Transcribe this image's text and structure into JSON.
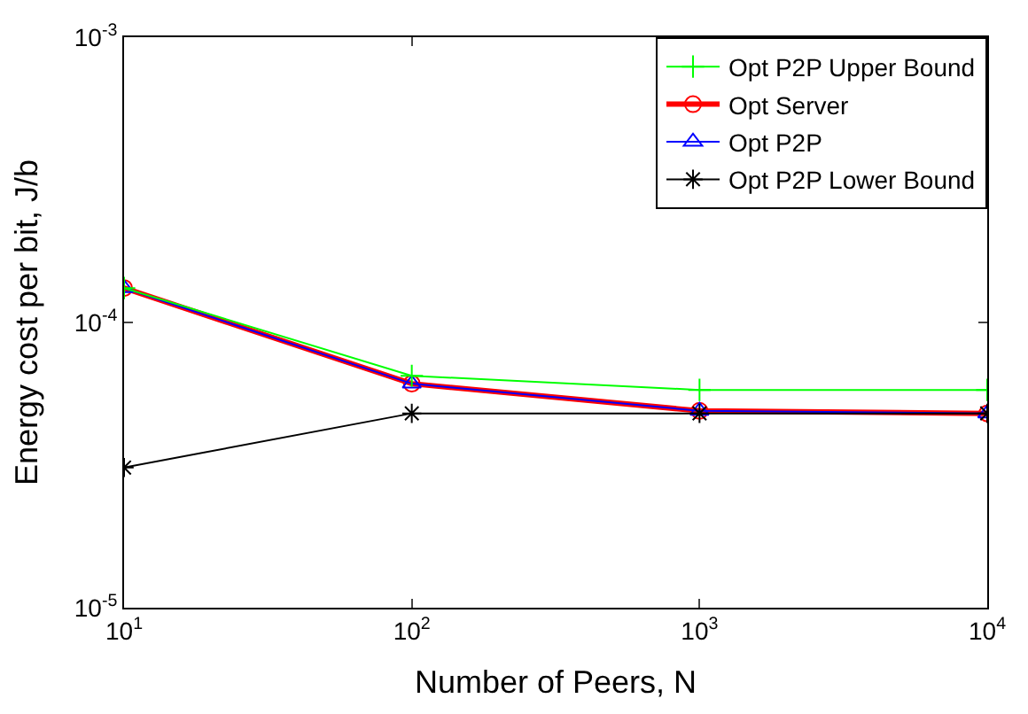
{
  "chart_data": {
    "type": "line",
    "xlabel": "Number of Peers, N",
    "ylabel": "Energy cost per bit, J/b",
    "log": "xy",
    "x": [
      10,
      100,
      1000,
      10000
    ],
    "series": [
      {
        "name": "Opt P2P Upper Bound",
        "color": "#00ff00",
        "marker": "cross",
        "values": [
          0.000132,
          6.5e-05,
          5.8e-05,
          5.8e-05
        ]
      },
      {
        "name": "Opt Server",
        "color": "#ff0000",
        "marker": "circle",
        "values": [
          0.000132,
          6.1e-05,
          4.9e-05,
          4.8e-05
        ]
      },
      {
        "name": "Opt P2P",
        "color": "#0000ff",
        "marker": "triangle",
        "values": [
          0.000132,
          6.1e-05,
          4.9e-05,
          4.8e-05
        ]
      },
      {
        "name": "Opt P2P Lower Bound",
        "color": "#000000",
        "marker": "cross",
        "values": [
          3.1e-05,
          4.8e-05,
          4.8e-05,
          4.8e-05
        ]
      }
    ],
    "xlim": [
      10,
      10000
    ],
    "ylim": [
      1e-05,
      0.001
    ],
    "xticks": [
      {
        "value": 10,
        "label": "10$^{1}$"
      },
      {
        "value": 100,
        "label": "10$^{2}$"
      },
      {
        "value": 1000,
        "label": "10$^{3}$"
      },
      {
        "value": 10000,
        "label": "10$^{4}$"
      }
    ],
    "yticks": [
      {
        "value": 1e-05,
        "label": "10$^{-5}$"
      },
      {
        "value": 0.0001,
        "label": "10$^{-4}$"
      },
      {
        "value": 0.001,
        "label": "10$^{-3}$"
      }
    ],
    "legend": "top right",
    "line_style": "solid"
  }
}
